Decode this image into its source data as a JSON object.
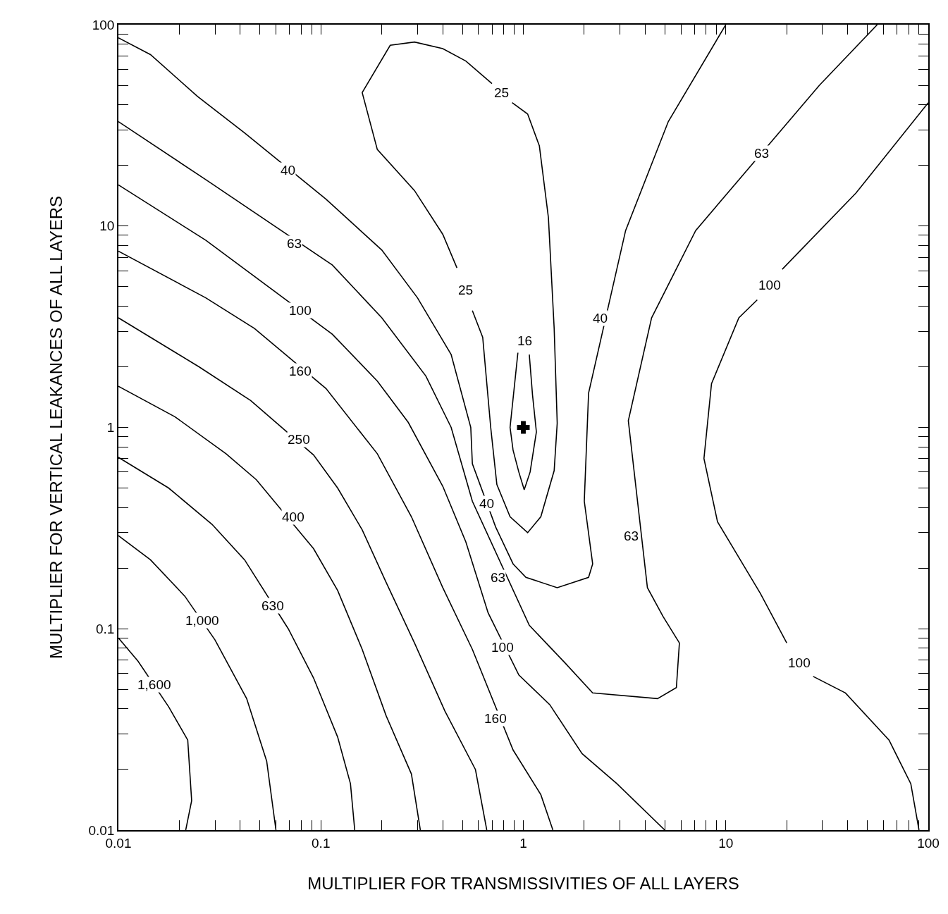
{
  "chart_data": {
    "type": "line",
    "xlabel": "MULTIPLIER FOR TRANSMISSIVITIES OF ALL LAYERS",
    "ylabel": "MULTIPLIER FOR VERTICAL LEAKANCES OF ALL LAYERS",
    "log": "xy",
    "xlim": [
      0.01,
      100
    ],
    "ylim": [
      0.01,
      100
    ],
    "xticks": [
      0.01,
      {
        "value": 0.02,
        "label": null
      },
      {
        "value": 0.03,
        "label": null
      },
      {
        "value": 0.04,
        "label": null
      },
      {
        "value": 0.05,
        "label": null
      },
      {
        "value": 0.06,
        "label": null
      },
      {
        "value": 0.07,
        "label": null
      },
      {
        "value": 0.08,
        "label": null
      },
      {
        "value": 0.09,
        "label": null
      },
      0.1,
      {
        "value": 0.2,
        "label": null
      },
      {
        "value": 0.3,
        "label": null
      },
      {
        "value": 0.4,
        "label": null
      },
      {
        "value": 0.5,
        "label": null
      },
      {
        "value": 0.6,
        "label": null
      },
      {
        "value": 0.7,
        "label": null
      },
      {
        "value": 0.8,
        "label": null
      },
      {
        "value": 0.9,
        "label": null
      },
      1,
      {
        "value": 2,
        "label": null
      },
      {
        "value": 3,
        "label": null
      },
      {
        "value": 4,
        "label": null
      },
      {
        "value": 5,
        "label": null
      },
      {
        "value": 6,
        "label": null
      },
      {
        "value": 7,
        "label": null
      },
      {
        "value": 8,
        "label": null
      },
      {
        "value": 9,
        "label": null
      },
      10,
      {
        "value": 20,
        "label": null
      },
      {
        "value": 30,
        "label": null
      },
      {
        "value": 40,
        "label": null
      },
      {
        "value": 50,
        "label": null
      },
      {
        "value": 60,
        "label": null
      },
      {
        "value": 70,
        "label": null
      },
      {
        "value": 80,
        "label": null
      },
      {
        "value": 90,
        "label": null
      },
      100
    ],
    "yticks": [
      0.01,
      {
        "value": 0.02,
        "label": null
      },
      {
        "value": 0.03,
        "label": null
      },
      {
        "value": 0.04,
        "label": null
      },
      {
        "value": 0.05,
        "label": null
      },
      {
        "value": 0.06,
        "label": null
      },
      {
        "value": 0.07,
        "label": null
      },
      {
        "value": 0.08,
        "label": null
      },
      {
        "value": 0.09,
        "label": null
      },
      0.1,
      {
        "value": 0.2,
        "label": null
      },
      {
        "value": 0.3,
        "label": null
      },
      {
        "value": 0.4,
        "label": null
      },
      {
        "value": 0.5,
        "label": null
      },
      {
        "value": 0.6,
        "label": null
      },
      {
        "value": 0.7,
        "label": null
      },
      {
        "value": 0.8,
        "label": null
      },
      {
        "value": 0.9,
        "label": null
      },
      1,
      {
        "value": 2,
        "label": null
      },
      {
        "value": 3,
        "label": null
      },
      {
        "value": 4,
        "label": null
      },
      {
        "value": 5,
        "label": null
      },
      {
        "value": 6,
        "label": null
      },
      {
        "value": 7,
        "label": null
      },
      {
        "value": 8,
        "label": null
      },
      {
        "value": 9,
        "label": null
      },
      10,
      {
        "value": 20,
        "label": null
      },
      {
        "value": 30,
        "label": null
      },
      {
        "value": 40,
        "label": null
      },
      {
        "value": 50,
        "label": null
      },
      {
        "value": 60,
        "label": null
      },
      {
        "value": 70,
        "label": null
      },
      {
        "value": 80,
        "label": null
      },
      {
        "value": 90,
        "label": null
      },
      100
    ],
    "series": [
      {
        "color": "#000000",
        "x": [
          0.01,
          0.0125,
          0.0177,
          0.022,
          0.023,
          0.0215
        ],
        "values": [
          0.09,
          0.069,
          0.041,
          0.028,
          0.014,
          0.01
        ]
      },
      {
        "color": "#000000",
        "x": [
          0.01,
          0.0144,
          0.0213,
          0.03,
          0.043,
          0.054,
          0.06
        ],
        "values": [
          0.29,
          0.22,
          0.145,
          0.088,
          0.045,
          0.022,
          0.01
        ]
      },
      {
        "color": "#000000",
        "x": [
          0.01,
          0.0177,
          0.029,
          0.042,
          0.069,
          0.092,
          0.121,
          0.14,
          0.147
        ],
        "values": [
          0.71,
          0.5,
          0.33,
          0.22,
          0.1,
          0.057,
          0.029,
          0.017,
          0.01
        ]
      },
      {
        "color": "#000000",
        "x": [
          0.01,
          0.019,
          0.034,
          0.048,
          0.092,
          0.121,
          0.16,
          0.21,
          0.28,
          0.31
        ],
        "values": [
          1.6,
          1.13,
          0.74,
          0.55,
          0.25,
          0.155,
          0.079,
          0.037,
          0.019,
          0.01
        ]
      },
      {
        "color": "#000000",
        "x": [
          0.01,
          0.025,
          0.045,
          0.092,
          0.121,
          0.16,
          0.21,
          0.29,
          0.41,
          0.58,
          0.66
        ],
        "values": [
          3.5,
          2.0,
          1.36,
          0.73,
          0.5,
          0.31,
          0.17,
          0.085,
          0.039,
          0.02,
          0.01
        ]
      },
      {
        "color": "#000000",
        "x": [
          0.01,
          0.027,
          0.047,
          0.106,
          0.19,
          0.28,
          0.4,
          0.56,
          0.89,
          1.22,
          1.4
        ],
        "values": [
          7.5,
          4.4,
          3.1,
          1.56,
          0.74,
          0.36,
          0.16,
          0.079,
          0.025,
          0.015,
          0.01
        ]
      },
      {
        "color": "#000000",
        "x": [
          0.01,
          0.027,
          0.114,
          0.19,
          0.27,
          0.4,
          0.52,
          0.67,
          0.95,
          1.35,
          1.95,
          2.9,
          5.0
        ],
        "values": [
          16,
          8.5,
          2.9,
          1.7,
          1.06,
          0.51,
          0.27,
          0.12,
          0.059,
          0.042,
          0.024,
          0.017,
          0.01
        ]
      },
      {
        "color": "#000000",
        "x": [
          0.01,
          0.027,
          0.114,
          0.2,
          0.33,
          0.44,
          0.56,
          1.07,
          1.6,
          2.2,
          4.6,
          5.7,
          5.9,
          4.9,
          4.1,
          3.3,
          4.3,
          7.1,
          29,
          56
        ],
        "values": [
          33,
          17,
          6.4,
          3.5,
          1.8,
          1.0,
          0.43,
          0.104,
          0.068,
          0.048,
          0.045,
          0.051,
          0.085,
          0.115,
          0.16,
          1.08,
          3.5,
          9.5,
          50,
          100
        ]
      },
      {
        "color": "#000000",
        "x": [
          0.01,
          0.0144,
          0.0246,
          0.042,
          0.106,
          0.2,
          0.3,
          0.44,
          0.55,
          0.56,
          0.73,
          0.89,
          1.03,
          1.47,
          2.1,
          2.2,
          2.0,
          2.1,
          3.2,
          5.2,
          10
        ],
        "values": [
          86,
          71,
          44,
          29,
          13.6,
          7.6,
          4.4,
          2.3,
          1.0,
          0.66,
          0.32,
          0.21,
          0.18,
          0.16,
          0.18,
          0.21,
          0.43,
          1.48,
          9.5,
          33,
          100
        ]
      },
      {
        "color": "#000000",
        "x": [
          0.7,
          0.52,
          0.4,
          0.29,
          0.22,
          0.16,
          0.19,
          0.29,
          0.4,
          0.47
        ],
        "values": [
          51,
          66,
          76,
          82,
          79,
          46,
          24,
          15,
          9.1,
          6.2
        ]
      },
      {
        "color": "#000000",
        "x": [
          0.56,
          0.63,
          0.69,
          0.74,
          0.86,
          1.05,
          1.22,
          1.42,
          1.47,
          1.42,
          1.33,
          1.2,
          1.05,
          0.88
        ],
        "values": [
          3.8,
          2.8,
          1.0,
          0.52,
          0.36,
          0.3,
          0.36,
          0.61,
          1.05,
          3.1,
          11,
          25,
          36,
          41
        ]
      },
      {
        "color": "#000000",
        "x": [
          1.07,
          1.11,
          1.16,
          1.08,
          1.01,
          0.95,
          0.89,
          0.86,
          0.94
        ],
        "values": [
          2.3,
          1.45,
          0.95,
          0.6,
          0.49,
          0.6,
          0.77,
          1.0,
          2.35
        ]
      },
      {
        "color": "#000000",
        "x": [
          100,
          44,
          19
        ],
        "values": [
          41,
          14.6,
          6.1
        ]
      },
      {
        "color": "#000000",
        "x": [
          14.3,
          11.6,
          8.5,
          7.8,
          9.1,
          14.8,
          20
        ],
        "values": [
          4.3,
          3.5,
          1.65,
          0.7,
          0.34,
          0.15,
          0.085
        ]
      },
      {
        "color": "#000000",
        "x": [
          27,
          39,
          64,
          82,
          90
        ],
        "values": [
          0.058,
          0.048,
          0.028,
          0.017,
          0.01
        ]
      },
      {
        "type": "scatter",
        "marker": "cross",
        "color": "#000000",
        "x": [
          1
        ],
        "values": [
          1
        ]
      }
    ],
    "annotations": [
      {
        "text": "1,600",
        "x": 0.015,
        "y": 0.053
      },
      {
        "text": "1,000",
        "x": 0.026,
        "y": 0.11
      },
      {
        "text": "630",
        "x": 0.058,
        "y": 0.13
      },
      {
        "text": "400",
        "x": 0.073,
        "y": 0.36
      },
      {
        "text": "250",
        "x": 0.078,
        "y": 0.87
      },
      {
        "text": "160",
        "x": 0.079,
        "y": 1.9
      },
      {
        "text": "160",
        "x": 0.73,
        "y": 0.036
      },
      {
        "text": "100",
        "x": 0.079,
        "y": 3.8
      },
      {
        "text": "100",
        "x": 0.79,
        "y": 0.081
      },
      {
        "text": "63",
        "x": 0.074,
        "y": 8.2
      },
      {
        "text": "63",
        "x": 0.75,
        "y": 0.18
      },
      {
        "text": "63",
        "x": 3.4,
        "y": 0.29
      },
      {
        "text": "63",
        "x": 15,
        "y": 23
      },
      {
        "text": "40",
        "x": 0.069,
        "y": 19
      },
      {
        "text": "40",
        "x": 0.66,
        "y": 0.42
      },
      {
        "text": "40",
        "x": 2.4,
        "y": 3.5
      },
      {
        "text": "25",
        "x": 0.78,
        "y": 46
      },
      {
        "text": "25",
        "x": 0.52,
        "y": 4.8
      },
      {
        "text": "16",
        "x": 1.02,
        "y": 2.7
      },
      {
        "text": "100",
        "x": 16.5,
        "y": 5.1
      },
      {
        "text": "100",
        "x": 23,
        "y": 0.068
      }
    ]
  }
}
